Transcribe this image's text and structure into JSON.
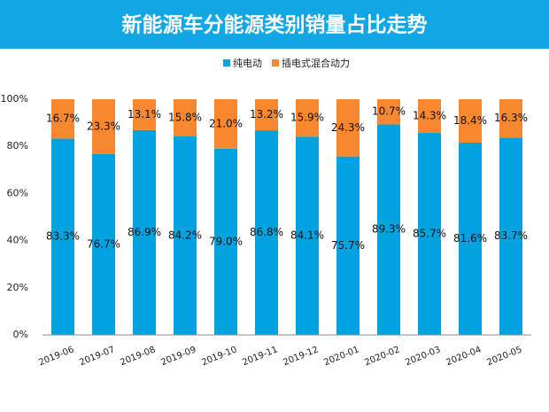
{
  "chart_data": {
    "type": "stacked_bar",
    "title": "新能源车分能源类别销量占比走势",
    "categories": [
      "2019-06",
      "2019-07",
      "2019-08",
      "2019-09",
      "2019-10",
      "2019-11",
      "2019-12",
      "2020-01",
      "2020-02",
      "2020-03",
      "2020-04",
      "2020-05"
    ],
    "series": [
      {
        "name": "纯电动",
        "color": "#00a3e0",
        "values": [
          83.3,
          76.7,
          86.9,
          84.2,
          79.0,
          86.8,
          84.1,
          75.7,
          89.3,
          85.7,
          81.6,
          83.7
        ],
        "value_labels": [
          "83.3%",
          "76.7%",
          "86.9%",
          "84.2%",
          "79.0%",
          "86.8%",
          "84.1%",
          "75.7%",
          "89.3%",
          "85.7%",
          "81.6%",
          "83.7%"
        ]
      },
      {
        "name": "插电式混合动力",
        "color": "#f7882f",
        "values": [
          16.7,
          23.3,
          13.1,
          15.8,
          21.0,
          13.2,
          15.9,
          24.3,
          10.7,
          14.3,
          18.4,
          16.3
        ],
        "value_labels": [
          "16.7%",
          "23.3%",
          "13.1%",
          "15.8%",
          "21.0%",
          "13.2%",
          "15.9%",
          "24.3%",
          "10.7%",
          "14.3%",
          "18.4%",
          "16.3%"
        ]
      }
    ],
    "ylim": [
      0,
      100
    ],
    "yticks": [
      {
        "value": 0,
        "label": "0%"
      },
      {
        "value": 20,
        "label": "20%"
      },
      {
        "value": 40,
        "label": "40%"
      },
      {
        "value": 60,
        "label": "60%"
      },
      {
        "value": 80,
        "label": "80%"
      },
      {
        "value": 100,
        "label": "100%"
      }
    ],
    "grid": false
  }
}
